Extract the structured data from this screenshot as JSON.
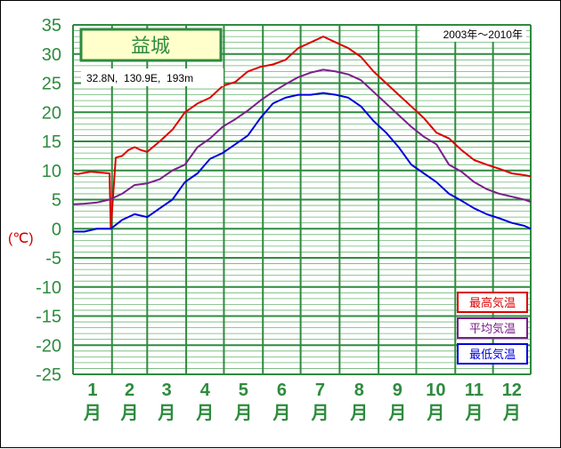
{
  "chart_data": {
    "type": "line",
    "title": "益城",
    "period": "2003年～2010年",
    "location": "32.8N,  130.9E,  193m",
    "ylabel": "(℃)",
    "ylim": [
      -25,
      35
    ],
    "yticks": [
      "35",
      "30",
      "25",
      "20",
      "15",
      "10",
      "5",
      "0",
      "-5",
      "-10",
      "-15",
      "-20",
      "-25"
    ],
    "months": [
      {
        "num": "1",
        "unit": "月"
      },
      {
        "num": "2",
        "unit": "月"
      },
      {
        "num": "3",
        "unit": "月"
      },
      {
        "num": "4",
        "unit": "月"
      },
      {
        "num": "5",
        "unit": "月"
      },
      {
        "num": "6",
        "unit": "月"
      },
      {
        "num": "7",
        "unit": "月"
      },
      {
        "num": "8",
        "unit": "月"
      },
      {
        "num": "9",
        "unit": "月"
      },
      {
        "num": "10",
        "unit": "月"
      },
      {
        "num": "11",
        "unit": "月"
      },
      {
        "num": "12",
        "unit": "月"
      }
    ],
    "grid": true,
    "legend_position": "bottom-right",
    "series": [
      {
        "name": "最高気温",
        "color": "#dd0000",
        "x": [
          1,
          5,
          10,
          15,
          20,
          25,
          30,
          31,
          35,
          40,
          45,
          50,
          55,
          60,
          70,
          80,
          90,
          100,
          110,
          120,
          130,
          140,
          150,
          160,
          170,
          180,
          190,
          200,
          210,
          220,
          230,
          240,
          250,
          260,
          270,
          280,
          290,
          300,
          310,
          320,
          330,
          340,
          350,
          360,
          365
        ],
        "values": [
          9.5,
          9.4,
          9.6,
          9.8,
          9.7,
          9.6,
          9.5,
          0,
          12.2,
          12.5,
          13.5,
          14.0,
          13.5,
          13.2,
          15.0,
          17.0,
          20.0,
          21.5,
          22.5,
          24.5,
          25.2,
          27.0,
          27.8,
          28.2,
          29.0,
          31.0,
          32.0,
          33.0,
          32.0,
          31.0,
          29.5,
          27.0,
          25.0,
          23.0,
          21.0,
          19.0,
          16.5,
          15.5,
          13.5,
          11.8,
          11.0,
          10.3,
          9.5,
          9.2,
          9.0
        ]
      },
      {
        "name": "平均気温",
        "color": "#7b1e8c",
        "x": [
          1,
          10,
          20,
          30,
          40,
          50,
          60,
          70,
          80,
          90,
          100,
          110,
          120,
          130,
          140,
          150,
          160,
          170,
          180,
          190,
          200,
          210,
          220,
          230,
          240,
          250,
          260,
          270,
          280,
          290,
          300,
          310,
          320,
          330,
          340,
          350,
          360,
          365
        ],
        "values": [
          4.2,
          4.3,
          4.5,
          5.0,
          6.0,
          7.5,
          7.8,
          8.5,
          10.0,
          11.0,
          14.0,
          15.5,
          17.5,
          18.8,
          20.3,
          22.0,
          23.5,
          24.8,
          26.0,
          26.8,
          27.3,
          27.0,
          26.5,
          25.5,
          23.5,
          21.5,
          19.5,
          17.5,
          15.8,
          14.5,
          11.0,
          9.8,
          8.0,
          6.8,
          6.0,
          5.5,
          5.0,
          4.6
        ]
      },
      {
        "name": "最低気温",
        "color": "#0000dd",
        "x": [
          1,
          10,
          20,
          31,
          40,
          50,
          60,
          70,
          80,
          90,
          100,
          110,
          120,
          130,
          140,
          150,
          160,
          170,
          180,
          190,
          200,
          210,
          220,
          230,
          240,
          250,
          260,
          270,
          280,
          290,
          300,
          310,
          320,
          330,
          340,
          350,
          360,
          365
        ],
        "values": [
          -0.5,
          -0.5,
          0,
          0,
          1.5,
          2.5,
          2.0,
          3.5,
          5.0,
          8.0,
          9.5,
          12.0,
          13.0,
          14.5,
          16.0,
          19.0,
          21.5,
          22.5,
          23.0,
          23.0,
          23.3,
          23.0,
          22.5,
          21.0,
          18.5,
          16.5,
          14.0,
          11.0,
          9.5,
          8.0,
          6.0,
          4.8,
          3.5,
          2.5,
          1.8,
          1.0,
          0.5,
          0.0
        ]
      }
    ]
  }
}
